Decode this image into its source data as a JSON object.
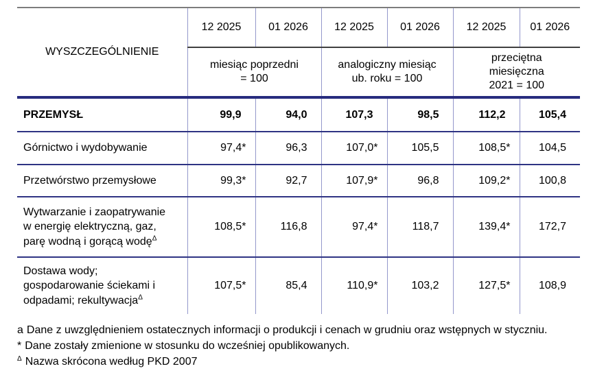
{
  "colors": {
    "top_rule": "#7c7c7c",
    "header_underline": "#3f3f3f",
    "thick_rule": "#272c7e",
    "row_rule": "#2e3383",
    "column_rule": "#9397cb",
    "text": "#000000",
    "background": "#ffffff"
  },
  "table": {
    "stub_header": "WYSZCZEGÓLNIENIE",
    "col_months": [
      "12 2025",
      "01 2026",
      "12 2025",
      "01 2026",
      "12 2025",
      "01 2026"
    ],
    "group_headers": [
      "miesiąc poprzedni\n= 100",
      "analogiczny miesiąc\nub. roku = 100",
      "przeciętna\nmiesięczna\n2021 = 100"
    ],
    "rows": [
      {
        "label": "PRZEMYSŁ",
        "sup": "",
        "bold": true,
        "values": [
          "99,9",
          "94,0",
          "107,3",
          "98,5",
          "112,2",
          "105,4"
        ]
      },
      {
        "label": "Górnictwo i wydobywanie",
        "sup": "",
        "bold": false,
        "values": [
          "97,4*",
          "96,3",
          "107,0*",
          "105,5",
          "108,5*",
          "104,5"
        ]
      },
      {
        "label": "Przetwórstwo przemysłowe",
        "sup": "",
        "bold": false,
        "values": [
          "99,3*",
          "92,7",
          "107,9*",
          "96,8",
          "109,2*",
          "100,8"
        ]
      },
      {
        "label": "Wytwarzanie i zaopatrywanie\nw energię elektryczną, gaz,\nparę wodną i gorącą wodę",
        "sup": "Δ",
        "bold": false,
        "values": [
          "108,5*",
          "116,8",
          "97,4*",
          "118,7",
          "139,4*",
          "172,7"
        ]
      },
      {
        "label": "Dostawa wody;\ngospodarowanie ściekami i\nodpadami; rekultywacja",
        "sup": "Δ",
        "bold": false,
        "values": [
          "107,5*",
          "85,4",
          "110,9*",
          "103,2",
          "127,5*",
          "108,9"
        ]
      }
    ]
  },
  "footnotes": [
    {
      "marker": "a",
      "text": "Dane z uwzględnieniem ostatecznych informacji o produkcji i cenach w grudniu oraz wstępnych w styczniu."
    },
    {
      "marker": "*",
      "text": "Dane zostały zmienione w stosunku do wcześniej opublikowanych."
    },
    {
      "marker": "Δ",
      "text": "Nazwa skrócona według PKD 2007"
    }
  ]
}
